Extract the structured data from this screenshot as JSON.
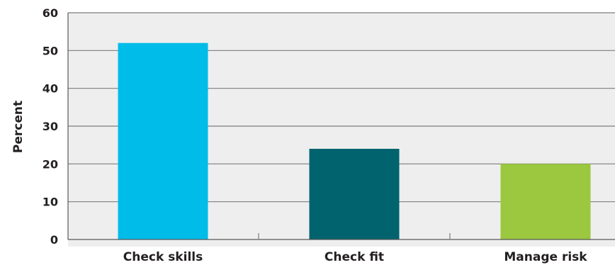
{
  "chart_data": {
    "type": "bar",
    "title": "",
    "xlabel": "",
    "ylabel": "Percent",
    "categories": [
      "Check skills",
      "Check fit",
      "Manage risk"
    ],
    "values": [
      52,
      24,
      20
    ],
    "ylim": [
      0,
      60
    ],
    "yticks": [
      "0",
      "10",
      "20",
      "30",
      "40",
      "50",
      "60"
    ],
    "grid": true,
    "legend": "none",
    "colors": [
      "#00bce8",
      "#00636e",
      "#9bc83e"
    ],
    "plot_background": "#eeeeee",
    "gridline_color": "#7d7d7d"
  }
}
